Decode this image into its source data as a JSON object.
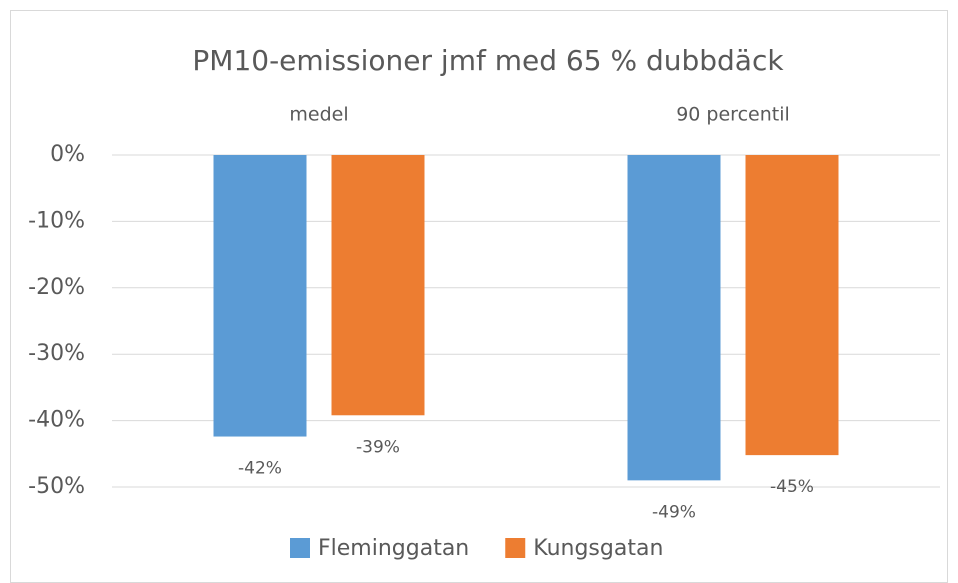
{
  "chart_data": {
    "type": "bar",
    "title": "PM10-emissioner jmf med 65 % dubbdäck",
    "categories": [
      "medel",
      "90 percentil"
    ],
    "series": [
      {
        "name": "Fleminggatan",
        "color": "#5b9bd5",
        "values": [
          -42.4,
          -49
        ],
        "value_labels": [
          "-42%",
          "-49%"
        ]
      },
      {
        "name": "Kungsgatan",
        "color": "#ed7d31",
        "values": [
          -39.2,
          -45.2
        ],
        "value_labels": [
          "-39%",
          "-45%"
        ]
      }
    ],
    "ylim": [
      -50,
      0
    ],
    "yticks": [
      {
        "value": 0,
        "label": "0%"
      },
      {
        "value": -10,
        "label": "-10%"
      },
      {
        "value": -20,
        "label": "-20%"
      },
      {
        "value": -30,
        "label": "-30%"
      },
      {
        "value": -40,
        "label": "-40%"
      },
      {
        "value": -50,
        "label": "-50%"
      }
    ],
    "grid": true,
    "legend": "bottom"
  }
}
